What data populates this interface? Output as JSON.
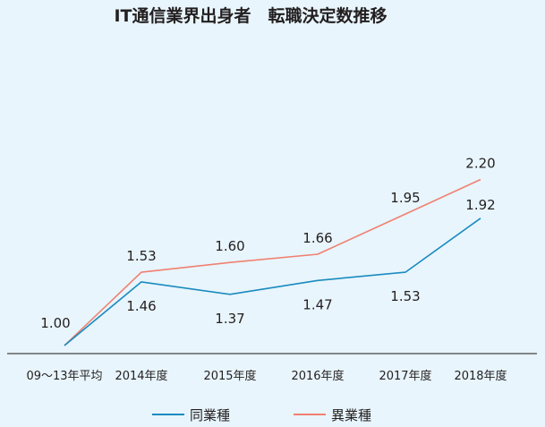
{
  "chart_data": {
    "type": "line",
    "title": "IT通信業界出身者　転職決定数推移",
    "categories": [
      "09～13年平均",
      "2014年度",
      "2015年度",
      "2016年度",
      "2017年度",
      "2018年度"
    ],
    "series": [
      {
        "name": "同業種",
        "color": "#1a8bbf",
        "values": [
          1.0,
          1.46,
          1.37,
          1.47,
          1.53,
          1.92
        ],
        "value_labels": [
          "",
          "1.46",
          "1.37",
          "1.47",
          "1.53",
          "1.92"
        ]
      },
      {
        "name": "異業種",
        "color": "#f08070",
        "values": [
          1.0,
          1.53,
          1.6,
          1.66,
          1.95,
          2.2
        ],
        "value_labels": [
          "1.00",
          "1.53",
          "1.60",
          "1.66",
          "1.95",
          "2.20"
        ]
      }
    ],
    "grid": false,
    "legend_position": "bottom",
    "axis_color": "#444444",
    "background_color": "#e8f5fc"
  }
}
